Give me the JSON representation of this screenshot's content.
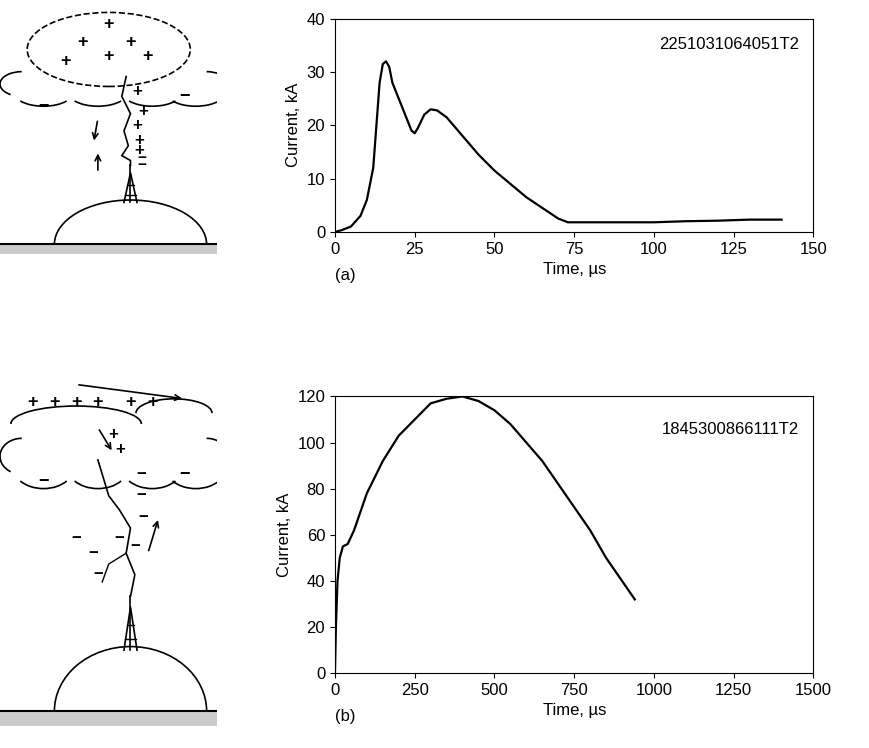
{
  "chart_data": [
    {
      "type": "line",
      "annotations": [
        "2251031064051T2",
        "(a)"
      ],
      "x_label": "Time, µs",
      "y_label": "Current, kA",
      "color": "#000000",
      "x": [
        0,
        2,
        5,
        8,
        10,
        12,
        13,
        14,
        15,
        16,
        17,
        18,
        20,
        22,
        24,
        25,
        26,
        28,
        30,
        32,
        35,
        40,
        45,
        50,
        55,
        60,
        65,
        70,
        73,
        75,
        100,
        110,
        120,
        125,
        130,
        140
      ],
      "values": [
        0,
        0.3,
        1,
        3,
        6,
        12,
        20,
        28,
        31.5,
        32,
        31,
        28,
        25,
        22,
        19,
        18.5,
        19.5,
        22,
        23,
        22.8,
        21.5,
        18,
        14.5,
        11.5,
        9,
        6.5,
        4.5,
        2.5,
        1.8,
        1.8,
        1.8,
        2.0,
        2.1,
        2.2,
        2.3,
        2.3
      ],
      "xlim": [
        0,
        150
      ],
      "xticks": [
        0,
        25,
        50,
        75,
        100,
        125,
        150
      ],
      "ylim": [
        0,
        40
      ],
      "yticks": [
        0,
        10,
        20,
        30,
        40
      ]
    },
    {
      "type": "line",
      "annotations": [
        "1845300866111T2",
        "(b)"
      ],
      "x_label": "Time, µs",
      "y_label": "Current, kA",
      "color": "#000000",
      "x": [
        0,
        3,
        8,
        15,
        25,
        40,
        60,
        100,
        150,
        200,
        250,
        300,
        350,
        400,
        450,
        500,
        550,
        600,
        650,
        700,
        750,
        800,
        850,
        900,
        940
      ],
      "values": [
        0,
        20,
        40,
        50,
        55,
        56,
        62,
        78,
        92,
        103,
        110,
        117,
        119,
        120,
        118,
        114,
        108,
        100,
        92,
        82,
        72,
        62,
        50,
        40,
        32
      ],
      "xlim": [
        0,
        1500
      ],
      "xticks": [
        0,
        250,
        500,
        750,
        1000,
        1250,
        1500
      ],
      "ylim": [
        0,
        120
      ],
      "yticks": [
        0,
        20,
        40,
        60,
        80,
        100,
        120
      ]
    }
  ],
  "diagrams": {
    "charge_signs": [
      "+",
      "−"
    ]
  }
}
